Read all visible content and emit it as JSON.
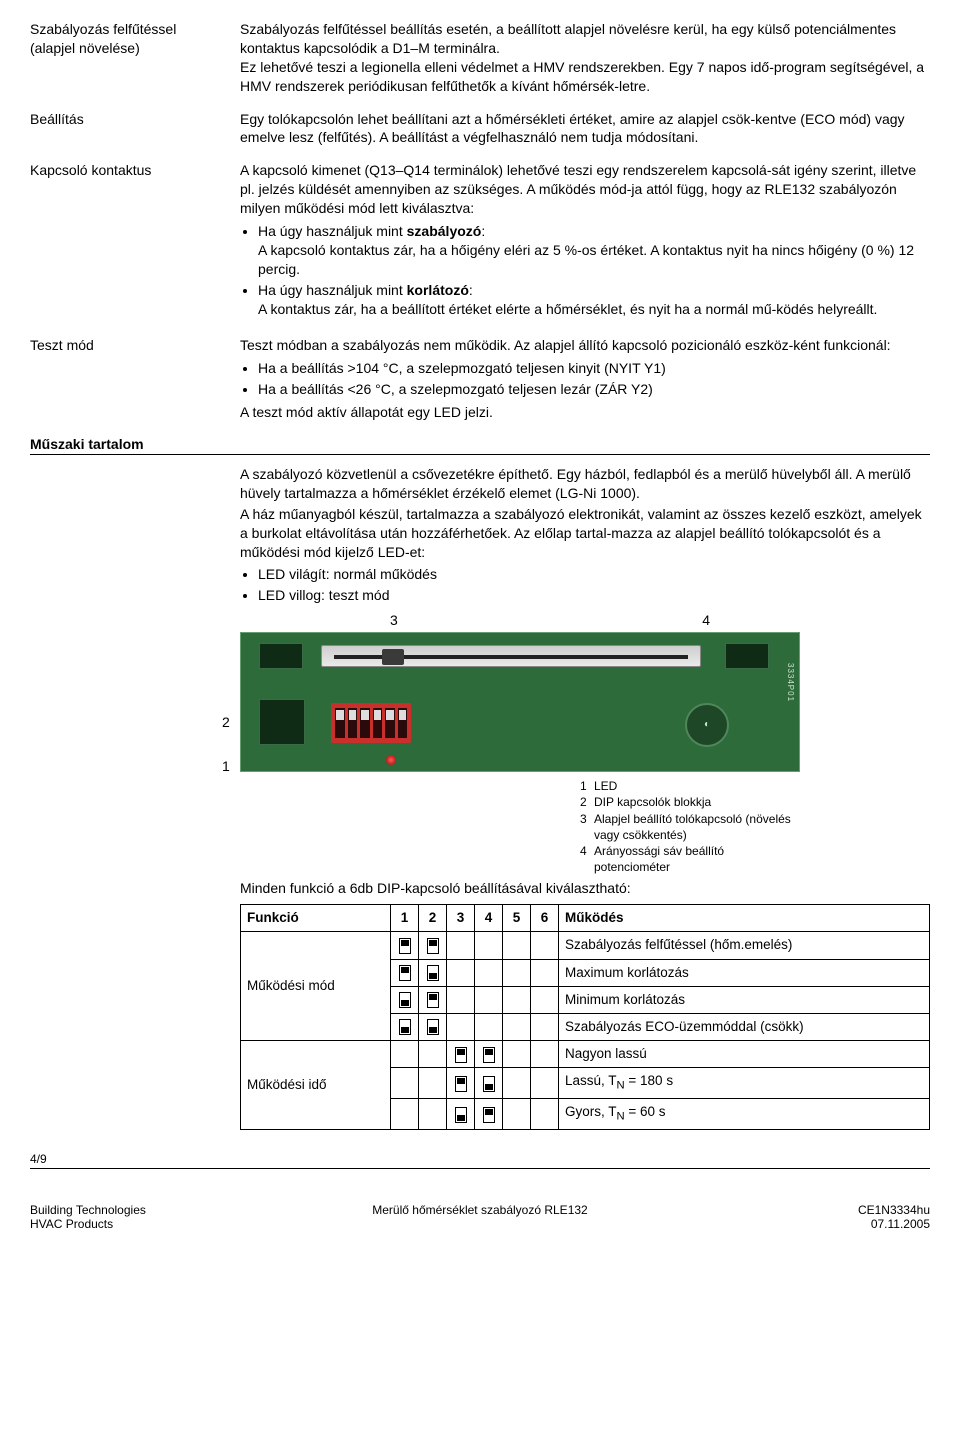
{
  "sections": {
    "s1": {
      "label": "Szabályozás felfűtéssel\n(alapjel növelése)",
      "text": "Szabályozás felfűtéssel beállítás esetén, a beállított alapjel növelésre kerül, ha egy külső potenciálmentes kontaktus kapcsolódik a D1–M terminálra.\nEz lehetővé teszi a legionella elleni védelmet a HMV rendszerekben. Egy 7 napos idő-program segítségével, a HMV rendszerek periódikusan felfűthetők a kívánt hőmérsék-letre."
    },
    "s2": {
      "label": "Beállítás",
      "text": "Egy tolókapcsolón lehet beállítani azt a hőmérsékleti értéket, amire az alapjel csök-kentve (ECO mód) vagy emelve lesz (felfűtés). A beállítást a végfelhasználó nem tudja módosítani."
    },
    "s3": {
      "label": "Kapcsoló kontaktus",
      "intro": "A kapcsoló kimenet (Q13–Q14 terminálok) lehetővé teszi egy rendszerelem kapcsolá-sát igény szerint, illetve pl. jelzés küldését amennyiben az szükséges. A működés mód-ja attól függ, hogy az RLE132 szabályozón milyen működési mód lett kiválasztva:",
      "b1_head": "Ha úgy használjuk mint szabályozó:",
      "b1_body": "A kapcsoló kontaktus zár, ha a hőigény eléri az 5 %-os értéket. A kontaktus nyit ha nincs hőigény (0 %) 12 percig.",
      "b2_head": "Ha úgy használjuk mint korlátozó:",
      "b2_body": "A kontaktus zár, ha a beállított értéket elérte a hőmérséklet, és nyit ha a normál mű-ködés helyreállt."
    },
    "s4": {
      "label": "Teszt mód",
      "intro": "Teszt módban a szabályozás nem működik. Az alapjel állító kapcsoló pozicionáló eszköz-ként funkcionál:",
      "b1": "Ha a beállítás >104 °C, a szelepmozgató teljesen kinyit (NYIT Y1)",
      "b2": "Ha a beállítás <26 °C, a szelepmozgató teljesen lezár (ZÁR Y2)",
      "outro": "A teszt mód aktív állapotát egy LED jelzi."
    },
    "muszaki": {
      "heading": "Műszaki tartalom",
      "p1": "A szabályozó közvetlenül a csővezetékre építhető. Egy házból, fedlapból és a merülő hüvelyből áll. A merülő hüvely tartalmazza a hőmérséklet érzékelő elemet (LG-Ni 1000).",
      "p2": "A ház műanyagból készül, tartalmazza a szabályozó elektronikát, valamint az összes kezelő eszközt, amelyek a burkolat eltávolítása után hozzáférhetőek. Az előlap tartal-mazza az alapjel beállító tolókapcsolót és a működési mód kijelző LED-et:",
      "b1": "LED világít: normál működés",
      "b2": "LED villog: teszt mód"
    }
  },
  "board": {
    "top3": "3",
    "top4": "4",
    "left2": "2",
    "left1": "1",
    "watermark": "3334P01",
    "legend": {
      "l1": "LED",
      "l2": "DIP kapcsolók blokkja",
      "l3a": "Alapjel beállító tolókapcsoló (növelés",
      "l3b": "vagy csökkentés)",
      "l4a": "Arányossági sáv beállító",
      "l4b": "potenciométer"
    }
  },
  "dip": {
    "caption": "Minden funkció a 6db DIP-kapcsoló beállításával kiválasztható:",
    "headers": {
      "func": "Funkció",
      "c1": "1",
      "c2": "2",
      "c3": "3",
      "c4": "4",
      "c5": "5",
      "c6": "6",
      "op": "Működés"
    },
    "rows": {
      "r1": {
        "func": "Működési mód",
        "op": "Szabályozás felfűtéssel (hőm.emelés)"
      },
      "r2": {
        "func": "",
        "op": "Maximum korlátozás"
      },
      "r3": {
        "func": "",
        "op": "Minimum korlátozás"
      },
      "r4": {
        "func": "",
        "op": "Szabályozás ECO-üzemmóddal (csökk)"
      },
      "r5": {
        "func": "Működési idő",
        "op": "Nagyon lassú"
      },
      "r6": {
        "func": "",
        "op": "Lassú, T"
      },
      "r6_sub": "N",
      "r6_tail": " = 180 s",
      "r7": {
        "func": "",
        "op": "Gyors, T"
      },
      "r7_sub": "N",
      "r7_tail": " = 60 s"
    }
  },
  "footer": {
    "page": "4/9",
    "bl1": "Building Technologies",
    "bl2": "HVAC Products",
    "mid": "Merülő hőmérséklet szabályozó RLE132",
    "r1": "CE1N3334hu",
    "r2": "07.11.2005"
  },
  "colors": {
    "board_bg": "#2d6b3a",
    "dip_red": "#c9302c"
  }
}
